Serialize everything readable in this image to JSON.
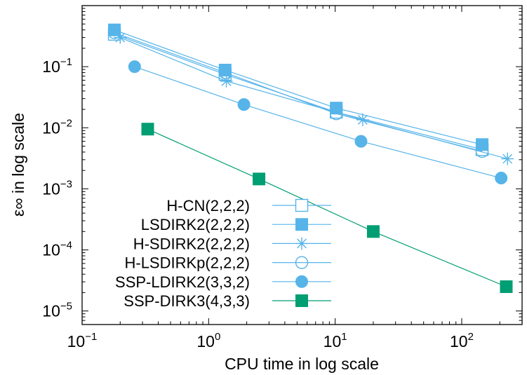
{
  "chart_data": {
    "type": "line",
    "xlabel": "CPU time in log scale",
    "ylabel": "ε∞ in log scale",
    "x_scale": "log",
    "y_scale": "log",
    "xlim": [
      0.1,
      300
    ],
    "ylim": [
      6e-06,
      1
    ],
    "x_ticks": [
      {
        "value": 0.1,
        "base": "10",
        "exp": "−1"
      },
      {
        "value": 1,
        "base": "10",
        "exp": "0"
      },
      {
        "value": 10,
        "base": "10",
        "exp": "1"
      },
      {
        "value": 100,
        "base": "10",
        "exp": "2"
      }
    ],
    "y_ticks": [
      {
        "value": 1e-05,
        "base": "10",
        "exp": "−5"
      },
      {
        "value": 0.0001,
        "base": "10",
        "exp": "−4"
      },
      {
        "value": 0.001,
        "base": "10",
        "exp": "−3"
      },
      {
        "value": 0.01,
        "base": "10",
        "exp": "−2"
      },
      {
        "value": 0.1,
        "base": "10",
        "exp": "−1"
      }
    ],
    "grid": false,
    "legend_position": "bottom-left",
    "series": [
      {
        "name": "H-CN(2,2,2)",
        "marker": "open-square",
        "color": "#56b4e9",
        "x": [
          0.18,
          1.35,
          10.2,
          145
        ],
        "y": [
          0.34,
          0.075,
          0.018,
          0.0044
        ]
      },
      {
        "name": "LSDIRK2(2,2,2)",
        "marker": "filled-square",
        "color": "#56b4e9",
        "x": [
          0.18,
          1.35,
          10.2,
          145
        ],
        "y": [
          0.4,
          0.088,
          0.021,
          0.0053
        ]
      },
      {
        "name": "H-SDIRK2(2,2,2)",
        "marker": "asterisk",
        "color": "#56b4e9",
        "x": [
          0.2,
          1.38,
          16.5,
          230
        ],
        "y": [
          0.3,
          0.058,
          0.0135,
          0.0031
        ]
      },
      {
        "name": "H-LSDIRKp(2,2,2)",
        "marker": "open-circle",
        "color": "#56b4e9",
        "x": [
          0.18,
          1.35,
          10.2,
          145
        ],
        "y": [
          0.36,
          0.08,
          0.017,
          0.0041
        ]
      },
      {
        "name": "SSP-LDIRK2(3,3,2)",
        "marker": "filled-circle",
        "color": "#56b4e9",
        "x": [
          0.26,
          1.9,
          16,
          205
        ],
        "y": [
          0.1,
          0.024,
          0.006,
          0.0015
        ]
      },
      {
        "name": "SSP-DIRK3(4,3,3)",
        "marker": "filled-square",
        "color": "#009e73",
        "x": [
          0.33,
          2.5,
          20,
          225
        ],
        "y": [
          0.0095,
          0.00145,
          0.0002,
          2.5e-05
        ]
      }
    ]
  }
}
